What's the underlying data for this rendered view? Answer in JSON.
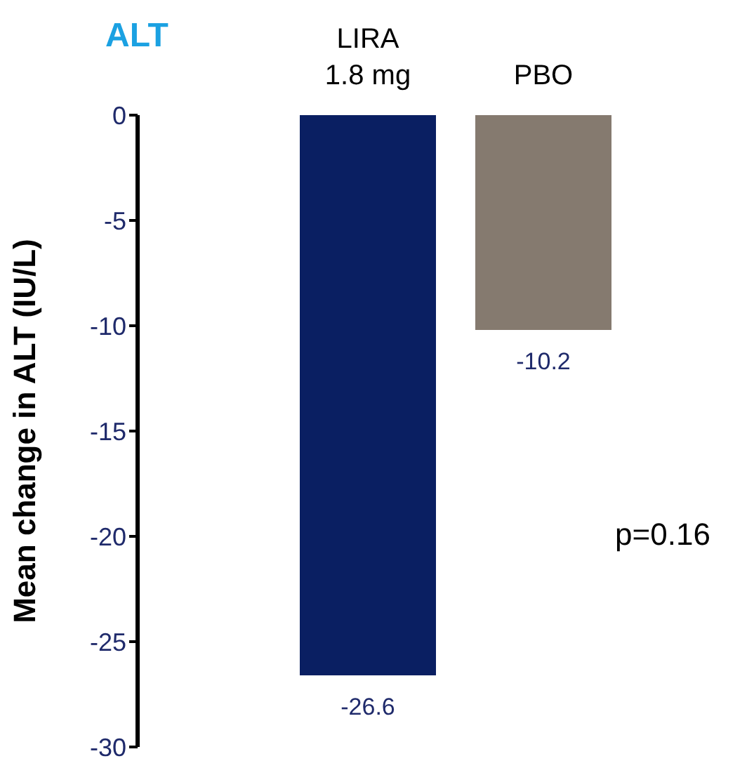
{
  "chart_data": {
    "type": "bar",
    "title": "ALT",
    "ylabel": "Mean change in ALT (IU/L)",
    "categories": [
      "LIRA 1.8 mg",
      "PBO"
    ],
    "values": [
      -26.6,
      -10.2
    ],
    "colors": [
      "#0a1f62",
      "#857a6f"
    ],
    "ylim": [
      -30,
      0
    ],
    "yticks": [
      -30,
      -25,
      -20,
      -15,
      -10,
      -5,
      0
    ],
    "grid": false,
    "data_labels": true,
    "legend": false,
    "annotations": [
      "p=0.16"
    ]
  }
}
